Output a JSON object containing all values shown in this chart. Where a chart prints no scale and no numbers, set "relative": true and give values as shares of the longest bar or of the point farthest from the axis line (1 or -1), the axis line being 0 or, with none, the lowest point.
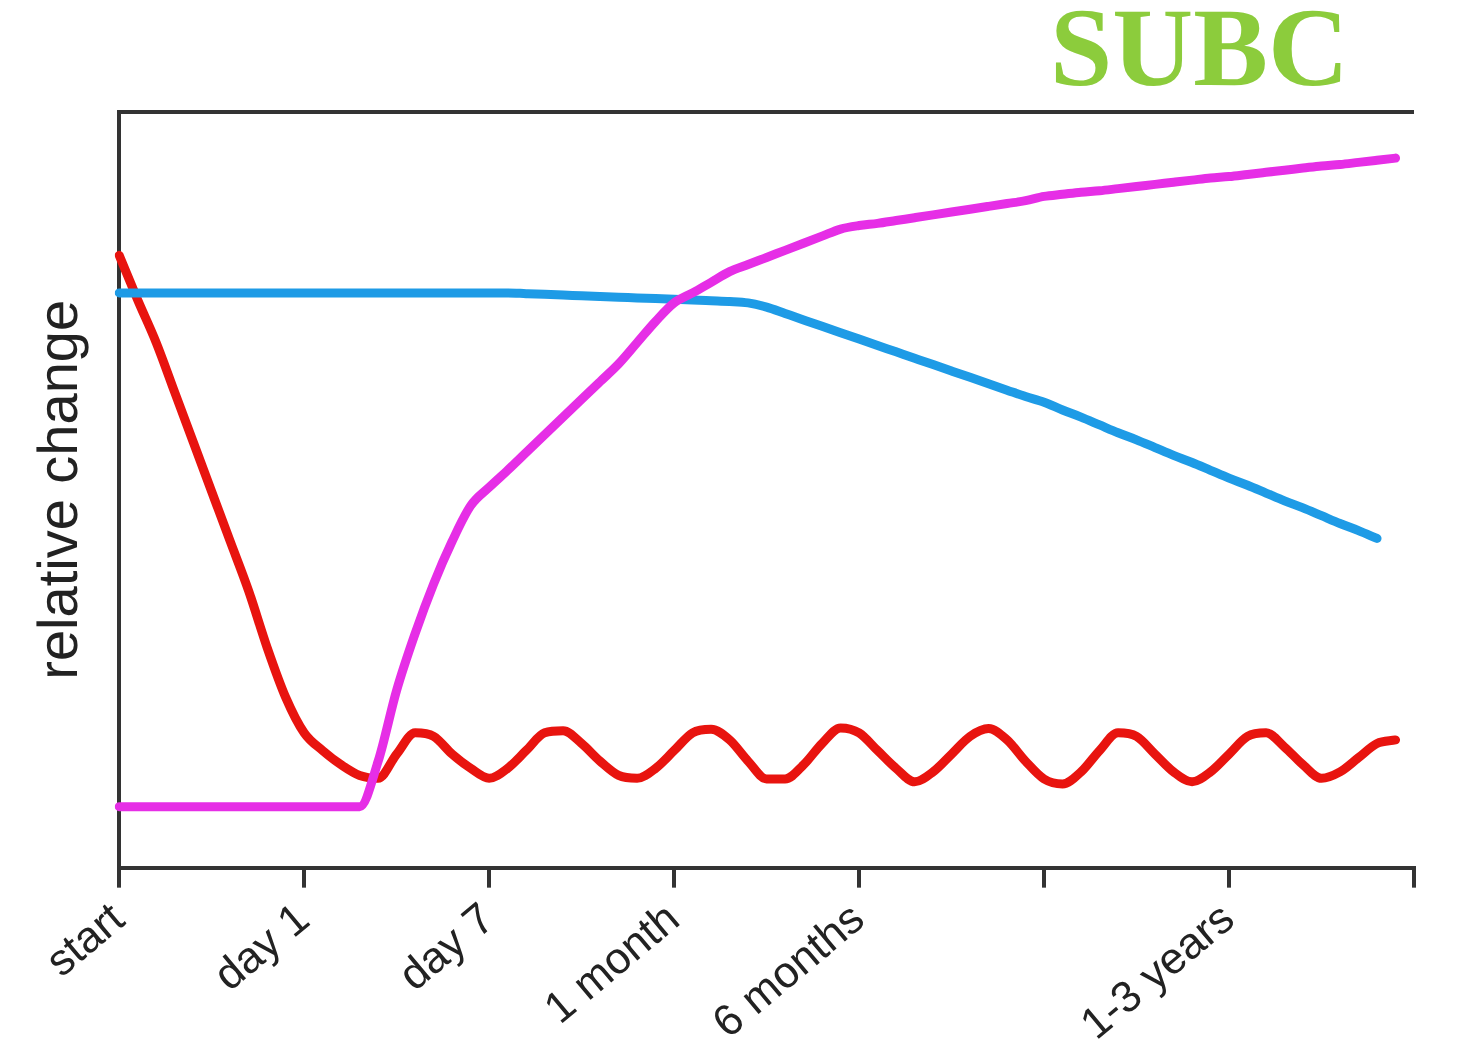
{
  "chart_data": {
    "type": "line",
    "relative": true,
    "ylabel": "relative change",
    "annotations": [
      "SUBC"
    ],
    "categories": [
      "start",
      null,
      null,
      null,
      null,
      null,
      null,
      null,
      null,
      null,
      "day 1",
      null,
      null,
      null,
      null,
      null,
      null,
      null,
      null,
      null,
      "day 7",
      null,
      null,
      null,
      null,
      null,
      null,
      null,
      null,
      null,
      "1 month",
      null,
      null,
      null,
      null,
      null,
      null,
      null,
      null,
      null,
      "6 months",
      null,
      null,
      null,
      null,
      null,
      null,
      null,
      null,
      null,
      null,
      null,
      null,
      null,
      null,
      null,
      null,
      null,
      null,
      null,
      "1-3 years",
      null,
      null,
      null,
      null,
      null,
      null,
      null,
      null,
      null,
      null
    ],
    "grid": false,
    "legend": false,
    "marker": "none",
    "line_style": "solid",
    "series": [
      {
        "color": "#e62ee6",
        "values": [
          0.086,
          0.086,
          0.086,
          0.086,
          0.086,
          0.086,
          0.086,
          0.086,
          0.086,
          0.086,
          0.086,
          0.086,
          0.086,
          0.086,
          0.15,
          0.25,
          0.33,
          0.4,
          0.46,
          0.51,
          0.536,
          0.56,
          0.585,
          0.61,
          0.635,
          0.66,
          0.685,
          0.71,
          0.74,
          0.77,
          0.796,
          0.81,
          0.825,
          0.84,
          0.85,
          0.86,
          0.87,
          0.88,
          0.89,
          0.9,
          0.905,
          0.908,
          0.912,
          0.916,
          0.92,
          0.924,
          0.928,
          0.932,
          0.936,
          0.94,
          0.946,
          0.949,
          0.952,
          0.954,
          0.957,
          0.96,
          0.963,
          0.966,
          0.969,
          0.972,
          0.974,
          0.977,
          0.98,
          0.983,
          0.986,
          0.989,
          0.991,
          0.994,
          0.997,
          1.0,
          null
        ]
      },
      {
        "color": "#1e9be6",
        "values": [
          0.81,
          0.81,
          0.81,
          0.81,
          0.81,
          0.81,
          0.81,
          0.81,
          0.81,
          0.81,
          0.81,
          0.81,
          0.81,
          0.81,
          0.81,
          0.81,
          0.81,
          0.81,
          0.81,
          0.81,
          0.81,
          0.81,
          0.809,
          0.808,
          0.807,
          0.806,
          0.805,
          0.804,
          0.803,
          0.802,
          0.801,
          0.8,
          0.799,
          0.798,
          0.796,
          0.79,
          0.781,
          0.772,
          0.763,
          0.754,
          0.745,
          0.736,
          0.727,
          0.718,
          0.709,
          0.7,
          0.691,
          0.682,
          0.673,
          0.664,
          0.656,
          0.645,
          0.635,
          0.624,
          0.613,
          0.603,
          0.592,
          0.581,
          0.571,
          0.56,
          0.549,
          0.539,
          0.528,
          0.517,
          0.507,
          0.496,
          0.485,
          0.475,
          0.464,
          null,
          null
        ]
      },
      {
        "color": "#e8140f",
        "values": [
          0.863,
          0.8,
          0.74,
          0.67,
          0.6,
          0.53,
          0.46,
          0.39,
          0.31,
          0.24,
          0.19,
          0.165,
          0.145,
          0.13,
          0.126,
          0.16,
          0.19,
          0.185,
          0.16,
          0.14,
          0.126,
          0.14,
          0.165,
          0.19,
          0.193,
          0.175,
          0.15,
          0.13,
          0.126,
          0.14,
          0.165,
          0.19,
          0.195,
          0.18,
          0.15,
          0.125,
          0.125,
          0.145,
          0.175,
          0.197,
          0.19,
          0.165,
          0.14,
          0.121,
          0.135,
          0.16,
          0.185,
          0.196,
          0.18,
          0.15,
          0.125,
          0.118,
          0.135,
          0.165,
          0.19,
          0.185,
          0.16,
          0.135,
          0.121,
          0.135,
          0.16,
          0.185,
          0.19,
          0.17,
          0.145,
          0.126,
          0.135,
          0.155,
          0.175,
          0.18,
          null
        ]
      }
    ]
  }
}
